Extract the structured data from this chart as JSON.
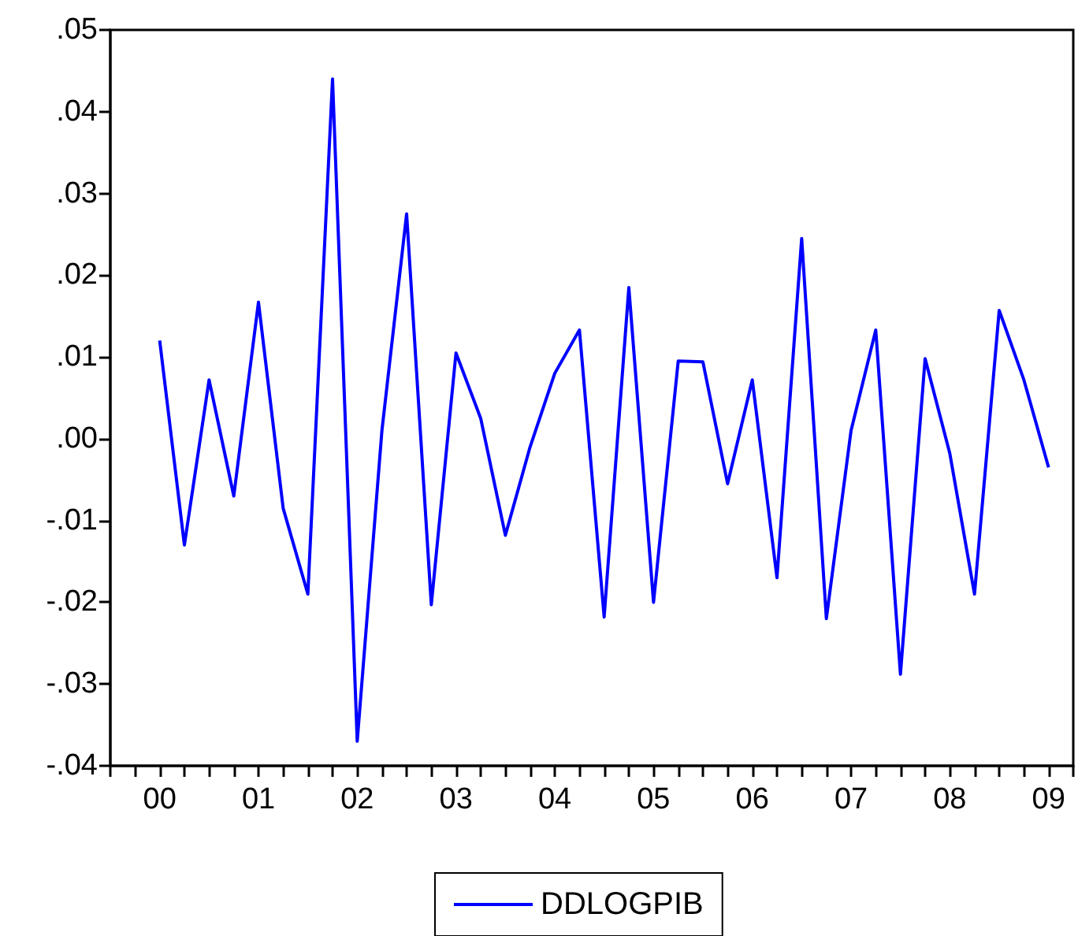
{
  "chart_data": {
    "type": "line",
    "categories": [
      null,
      null,
      "00",
      null,
      null,
      null,
      "01",
      null,
      null,
      null,
      "02",
      null,
      null,
      null,
      "03",
      null,
      null,
      null,
      "04",
      null,
      null,
      null,
      "05",
      null,
      null,
      null,
      "06",
      null,
      null,
      null,
      "07",
      null,
      null,
      null,
      "08",
      null,
      null,
      null,
      "09",
      null
    ],
    "series": [
      {
        "name": "DDLOGPIB",
        "color": "#0000ff",
        "values": [
          null,
          null,
          0.012,
          -0.013,
          0.0072,
          -0.007,
          0.0167,
          -0.0085,
          -0.019,
          0.044,
          -0.037,
          0.001,
          0.0275,
          -0.0203,
          0.0105,
          0.0025,
          -0.0118,
          -0.001,
          0.008,
          0.0133,
          -0.0218,
          0.0185,
          -0.02,
          0.0095,
          0.0094,
          -0.0055,
          0.0072,
          -0.017,
          0.0245,
          -0.022,
          0.001,
          0.0133,
          -0.0288,
          0.0098,
          -0.0018,
          -0.019,
          0.0157,
          0.0072,
          -0.0035,
          null
        ]
      }
    ],
    "ylim": [
      -0.04,
      0.05
    ],
    "yticks": [
      {
        "value": -0.04,
        "label": "-.04"
      },
      {
        "value": -0.03,
        "label": "-.03"
      },
      {
        "value": -0.02,
        "label": "-.02"
      },
      {
        "value": -0.01,
        "label": "-.01"
      },
      {
        "value": 0,
        "label": ".00"
      },
      {
        "value": 0.01,
        "label": ".01"
      },
      {
        "value": 0.02,
        "label": ".02"
      },
      {
        "value": 0.03,
        "label": ".03"
      },
      {
        "value": 0.04,
        "label": ".04"
      },
      {
        "value": 0.05,
        "label": ".05"
      }
    ],
    "grid": false,
    "legend": "bottom",
    "marker": "none",
    "line_style": "solid"
  }
}
